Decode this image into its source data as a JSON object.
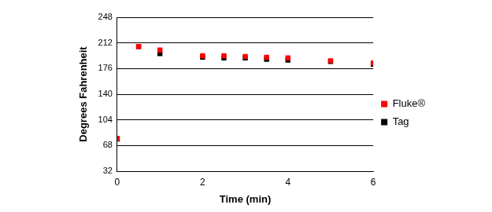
{
  "chart_data": {
    "type": "scatter",
    "x_label": "Time (min)",
    "y_label": "Degrees Fahrenheit",
    "x": [
      0,
      0.5,
      1,
      2,
      2.5,
      3,
      3.5,
      4,
      5,
      6
    ],
    "series": [
      {
        "name": "Tag",
        "color": "#000000",
        "marker": "square",
        "values": [
          77,
          207,
          197,
          192,
          191,
          191,
          189,
          188,
          186,
          182
        ]
      },
      {
        "name": "Fluke®",
        "color": "#ff0000",
        "marker": "square",
        "values": [
          78,
          207,
          202,
          194,
          194,
          193,
          192,
          191,
          187,
          184
        ]
      }
    ],
    "xlim": [
      0,
      6
    ],
    "xticks": [
      0,
      2,
      4,
      6
    ],
    "ylim": [
      32,
      248
    ],
    "yticks": [
      32,
      68,
      104,
      140,
      176,
      212,
      248
    ],
    "grid": true,
    "legend": "right"
  }
}
